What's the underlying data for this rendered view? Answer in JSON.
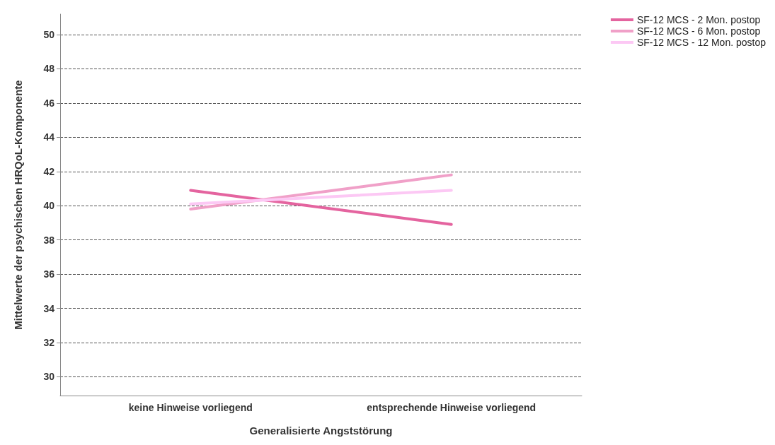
{
  "chart_data": {
    "type": "line",
    "xlabel": "Generalisierte Angststörung",
    "ylabel": "Mittelwerte der psychischen HRQoL-Komponente",
    "categories": [
      "keine Hinweise vorliegend",
      "entsprechende Hinweise vorliegend"
    ],
    "series": [
      {
        "name": "SF-12 MCS - 2 Mon. postop",
        "color": "#e4649f",
        "values": [
          40.9,
          38.9
        ]
      },
      {
        "name": "SF-12 MCS - 6 Mon. postop",
        "color": "#f0a0c8",
        "values": [
          39.8,
          41.8
        ]
      },
      {
        "name": "SF-12 MCS - 12 Mon. postop",
        "color": "#fcc8f4",
        "values": [
          40.1,
          40.9
        ]
      }
    ],
    "ylim": [
      28.9,
      51.2
    ],
    "yticks": [
      30,
      32,
      34,
      36,
      38,
      40,
      42,
      44,
      46,
      48,
      50
    ],
    "grid": "y",
    "legend": "top right",
    "marker": "none",
    "line_style": "solid"
  }
}
